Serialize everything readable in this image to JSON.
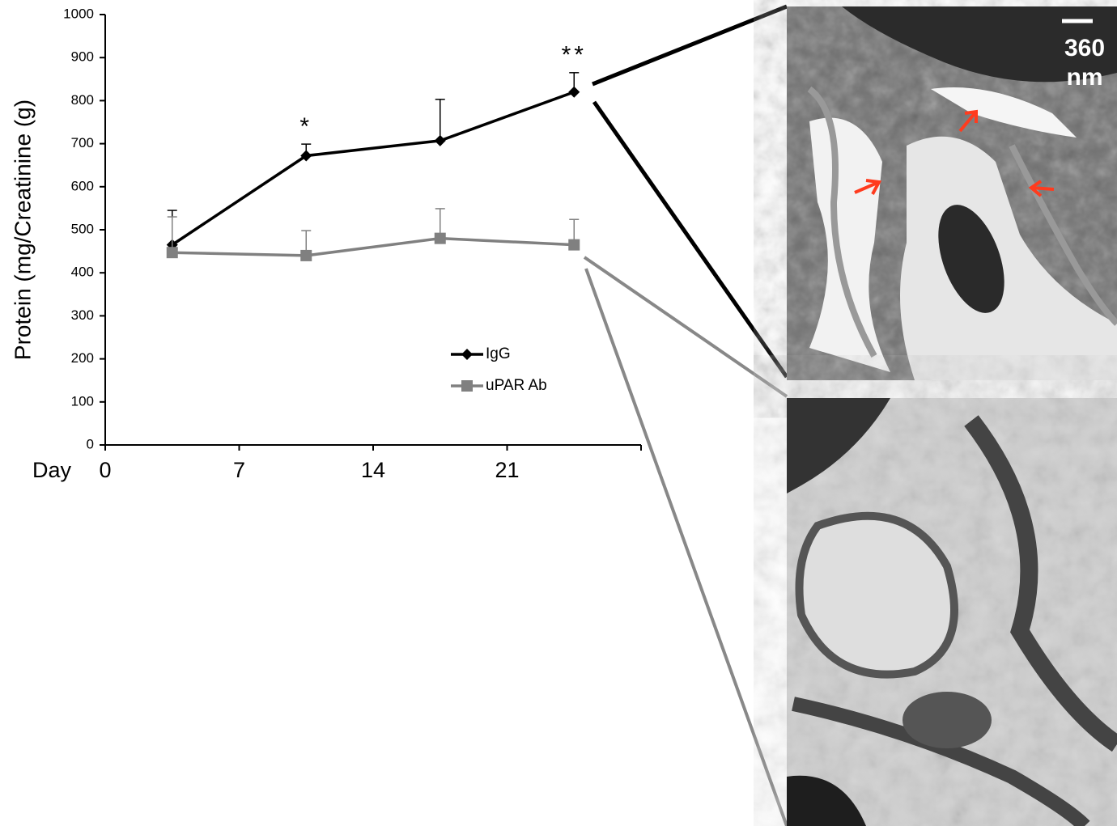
{
  "chart_data": {
    "type": "line",
    "y_label": "Protein (mg/Creatinine (g)",
    "x_label": "Day",
    "x": [
      3.5,
      10.5,
      17.5,
      24.5
    ],
    "xlim": [
      0,
      28
    ],
    "xticks": [
      0,
      7,
      14,
      21
    ],
    "ylim": [
      0,
      1000
    ],
    "yticks": [
      0,
      100,
      200,
      300,
      400,
      500,
      600,
      700,
      800,
      900,
      1000
    ],
    "series": [
      {
        "name": "IgG",
        "color": "#000000",
        "marker": "diamond",
        "values": [
          465,
          672,
          707,
          820
        ],
        "errors": [
          80,
          27,
          96,
          45
        ]
      },
      {
        "name": "uPAR Ab",
        "color": "#808080",
        "marker": "square",
        "values": [
          447,
          440,
          480,
          465
        ],
        "errors": [
          83,
          58,
          69,
          59
        ]
      }
    ],
    "annotations": [
      {
        "text": "*",
        "x": 10.5
      },
      {
        "text": "**",
        "x": 24.5
      }
    ],
    "scale_bar": "360 nm"
  }
}
